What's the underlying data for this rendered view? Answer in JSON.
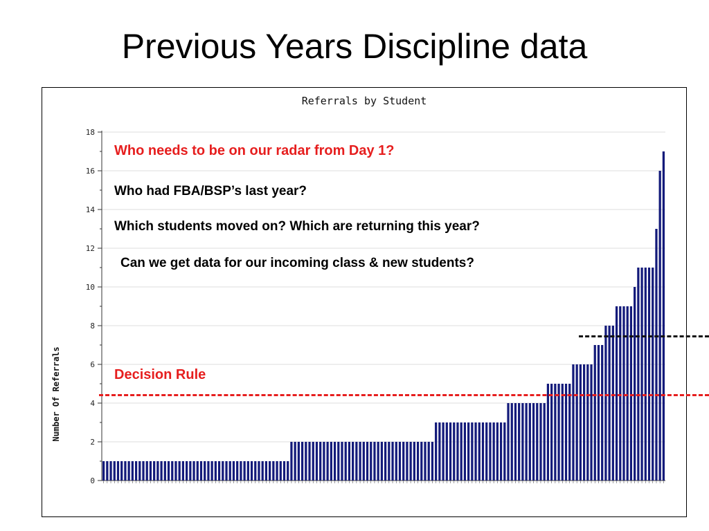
{
  "slide": {
    "title": "Previous Years Discipline data"
  },
  "annotations": {
    "radar": "Who needs to be on our radar from Day 1?",
    "fba": "Who had FBA/BSP’s last year?",
    "moved": "Which students moved on? Which are returning this year?",
    "incoming": "Can we get data for our incoming class & new students?",
    "decision_rule": "Decision Rule"
  },
  "colors": {
    "bar": "#131a7a",
    "decision_rule": "#e61e1e",
    "dash_black": "#111111"
  },
  "chart_data": {
    "type": "bar",
    "title": "Referrals by Student",
    "xlabel": "",
    "ylabel": "Number Of Referrals",
    "ylim": [
      0,
      18
    ],
    "yticks": [
      0,
      2,
      4,
      6,
      8,
      10,
      12,
      14,
      16,
      18
    ],
    "grid": true,
    "values": [
      1,
      1,
      1,
      1,
      1,
      1,
      1,
      1,
      1,
      1,
      1,
      1,
      1,
      1,
      1,
      1,
      1,
      1,
      1,
      1,
      1,
      1,
      1,
      1,
      1,
      1,
      1,
      1,
      1,
      1,
      1,
      1,
      1,
      1,
      1,
      1,
      1,
      1,
      1,
      1,
      1,
      1,
      1,
      1,
      1,
      1,
      1,
      1,
      1,
      1,
      1,
      1,
      2,
      2,
      2,
      2,
      2,
      2,
      2,
      2,
      2,
      2,
      2,
      2,
      2,
      2,
      2,
      2,
      2,
      2,
      2,
      2,
      2,
      2,
      2,
      2,
      2,
      2,
      2,
      2,
      2,
      2,
      2,
      2,
      2,
      2,
      2,
      2,
      2,
      2,
      2,
      2,
      3,
      3,
      3,
      3,
      3,
      3,
      3,
      3,
      3,
      3,
      3,
      3,
      3,
      3,
      3,
      3,
      3,
      3,
      3,
      3,
      4,
      4,
      4,
      4,
      4,
      4,
      4,
      4,
      4,
      4,
      4,
      5,
      5,
      5,
      5,
      5,
      5,
      5,
      6,
      6,
      6,
      6,
      6,
      6,
      7,
      7,
      7,
      8,
      8,
      8,
      9,
      9,
      9,
      9,
      9,
      10,
      11,
      11,
      11,
      11,
      11,
      13,
      16,
      17
    ]
  }
}
